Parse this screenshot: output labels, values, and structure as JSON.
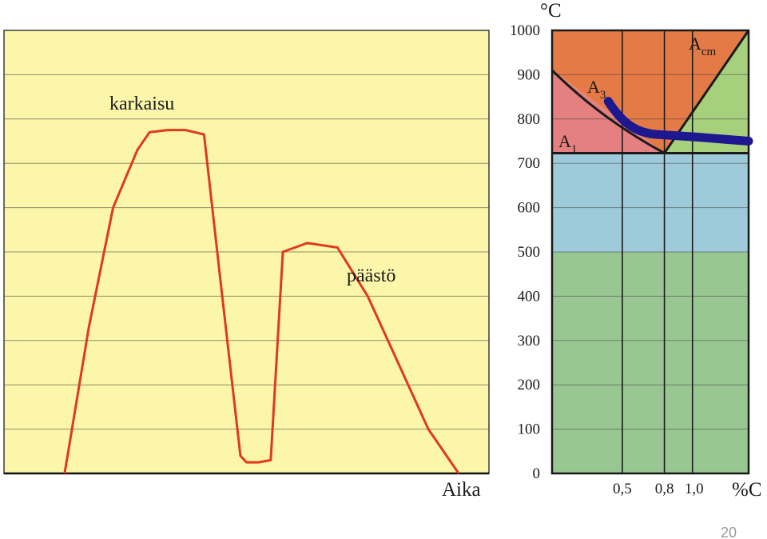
{
  "page_number": "20",
  "colors": {
    "left_bg": "#fbf6aa",
    "curve": "#e03a1e",
    "grid": "#3a3a3a",
    "austenite": "#e47a45",
    "austenite_ferrite": "#e58080",
    "austenite_cementite": "#a7d07c",
    "blue_zone": "#9ecbd9",
    "green_zone": "#98c792",
    "tempering_line": "#1e1890",
    "phase_line": "#1a1a1a"
  },
  "chart_data": [
    {
      "type": "line",
      "title": "",
      "xlabel": "Aika",
      "ylabel": "",
      "ylim": [
        0,
        1000
      ],
      "grid": true,
      "annotations": [
        {
          "text": "karkaisu",
          "x": 16,
          "y": 830
        },
        {
          "text": "päästö",
          "x": 45,
          "y": 440
        }
      ],
      "series": [
        {
          "name": "",
          "x": [
            10,
            14,
            18,
            22,
            24,
            27,
            30,
            33,
            36,
            39,
            40,
            41,
            42,
            44,
            46,
            50,
            55,
            60,
            65,
            70,
            75
          ],
          "y": [
            0,
            330,
            600,
            730,
            770,
            775,
            775,
            765,
            400,
            40,
            25,
            25,
            25,
            30,
            500,
            520,
            510,
            400,
            250,
            100,
            0
          ]
        }
      ]
    },
    {
      "type": "line",
      "title": "",
      "xlabel": "%C",
      "ylabel": "°C",
      "ylim": [
        0,
        1000
      ],
      "xlim": [
        0,
        1.4
      ],
      "y_ticks": [
        "0",
        "100",
        "200",
        "300",
        "400",
        "500",
        "600",
        "700",
        "800",
        "900",
        "1000"
      ],
      "x_ticks": [
        "0,5",
        "0,8",
        "1,0"
      ],
      "x_tick_values": [
        0.5,
        0.8,
        1.0
      ],
      "grid": true,
      "zone_labels": {
        "a1": {
          "main": "A",
          "sub": "1"
        },
        "a3": {
          "main": "A",
          "sub": "3"
        },
        "acm": {
          "main": "A",
          "sub": "cm"
        }
      },
      "series": [
        {
          "name": "",
          "kind": "A3",
          "x": [
            0,
            0.8
          ],
          "y": [
            910,
            723
          ]
        },
        {
          "name": "",
          "kind": "Acm",
          "x": [
            0.8,
            1.4
          ],
          "y": [
            723,
            1000
          ]
        },
        {
          "name": "",
          "kind": "A1",
          "x": [
            0,
            1.4
          ],
          "y": [
            723,
            723
          ]
        },
        {
          "name": "",
          "kind": "tempering",
          "x": [
            0.4,
            0.55,
            0.75,
            1.0,
            1.2,
            1.4
          ],
          "y": [
            840,
            780,
            765,
            760,
            755,
            750
          ]
        }
      ],
      "bands": [
        {
          "from": 500,
          "to": 723,
          "color_key": "blue_zone"
        },
        {
          "from": 0,
          "to": 500,
          "color_key": "green_zone"
        }
      ]
    }
  ]
}
